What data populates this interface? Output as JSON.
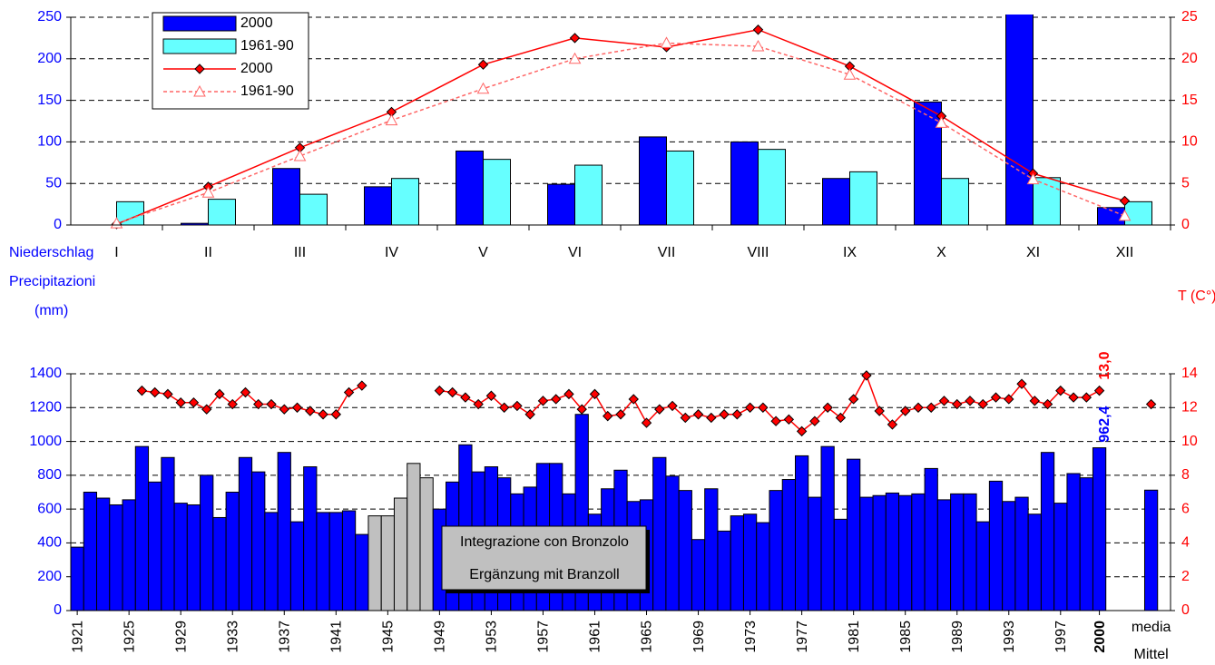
{
  "chart_data": [
    {
      "type": "combo",
      "categories": [
        "I",
        "II",
        "III",
        "IV",
        "V",
        "VI",
        "VII",
        "VIII",
        "IX",
        "X",
        "XI",
        "XII"
      ],
      "y_label": [
        "Niederschlag",
        "Precipitazioni",
        "(mm)"
      ],
      "y2_label": "T (C°)",
      "ylim": [
        0,
        250
      ],
      "yticks": [
        0,
        50,
        100,
        150,
        200,
        250
      ],
      "y2lim": [
        0,
        25
      ],
      "y2ticks": [
        0,
        5,
        10,
        15,
        20,
        25
      ],
      "grid": true,
      "legend": "top-left",
      "series": [
        {
          "name": "2000",
          "type": "bar",
          "color": "#0000ff",
          "values": [
            0,
            2,
            68,
            46,
            89,
            49,
            106,
            100,
            56,
            148,
            260,
            21
          ]
        },
        {
          "name": "1961-90",
          "type": "bar",
          "color": "#66ffff",
          "values": [
            28,
            31,
            37,
            56,
            79,
            72,
            89,
            91,
            64,
            56,
            57,
            28
          ]
        },
        {
          "name": "2000",
          "type": "line",
          "axis": "y2",
          "color": "#ff0000",
          "marker": "diamond",
          "dashed": false,
          "values": [
            0.1,
            4.6,
            9.3,
            13.6,
            19.3,
            22.5,
            21.4,
            23.5,
            19.1,
            13.1,
            6.2,
            2.9
          ]
        },
        {
          "name": "1961-90",
          "type": "line",
          "axis": "y2",
          "color": "#ff6666",
          "marker": "triangle",
          "dashed": true,
          "values": [
            0.2,
            3.9,
            8.3,
            12.6,
            16.4,
            20.0,
            21.9,
            21.5,
            18.1,
            12.3,
            5.5,
            1.1
          ]
        }
      ]
    },
    {
      "type": "combo",
      "x": [
        1921,
        1922,
        1923,
        1924,
        1925,
        1926,
        1927,
        1928,
        1929,
        1930,
        1931,
        1932,
        1933,
        1934,
        1935,
        1936,
        1937,
        1938,
        1939,
        1940,
        1941,
        1942,
        1943,
        1944,
        1945,
        1946,
        1947,
        1948,
        1949,
        1950,
        1951,
        1952,
        1953,
        1954,
        1955,
        1956,
        1957,
        1958,
        1959,
        1960,
        1961,
        1962,
        1963,
        1964,
        1965,
        1966,
        1967,
        1968,
        1969,
        1970,
        1971,
        1972,
        1973,
        1974,
        1975,
        1976,
        1977,
        1978,
        1979,
        1980,
        1981,
        1982,
        1983,
        1984,
        1985,
        1986,
        1987,
        1988,
        1989,
        1990,
        1991,
        1992,
        1993,
        1994,
        1995,
        1996,
        1997,
        1998,
        1999,
        2000
      ],
      "xlim": [
        1920.5,
        2005.5
      ],
      "xticks": [
        1921,
        1925,
        1929,
        1933,
        1937,
        1941,
        1945,
        1949,
        1953,
        1957,
        1961,
        1965,
        1969,
        1973,
        1977,
        1981,
        1985,
        1989,
        1993,
        1997,
        2000
      ],
      "ylim": [
        0,
        1400
      ],
      "yticks": [
        0,
        200,
        400,
        600,
        800,
        1000,
        1200,
        1400
      ],
      "y2lim": [
        0,
        14
      ],
      "y2ticks": [
        0,
        2,
        4,
        6,
        8,
        10,
        12,
        14
      ],
      "grid": true,
      "supplement_range": [
        1944,
        1948
      ],
      "supplement_color": "#c0c0c0",
      "annotations": [
        "Integrazione con Bronzolo",
        "Ergänzung mit Branzoll"
      ],
      "mean": {
        "labels": [
          "media",
          "Mittel"
        ],
        "precipitation": 712,
        "temperature": 12.2
      },
      "series": [
        {
          "type": "bar",
          "color": "#0000ff",
          "values": [
            375,
            700,
            665,
            625,
            655,
            970,
            760,
            905,
            635,
            625,
            800,
            550,
            700,
            905,
            820,
            580,
            935,
            525,
            850,
            580,
            580,
            590,
            450,
            560,
            560,
            665,
            870,
            785,
            600,
            760,
            980,
            820,
            850,
            785,
            690,
            730,
            870,
            870,
            690,
            1160,
            570,
            720,
            830,
            645,
            655,
            905,
            795,
            710,
            420,
            720,
            470,
            560,
            570,
            520,
            710,
            775,
            915,
            670,
            970,
            540,
            895,
            670,
            680,
            695,
            680,
            690,
            840,
            655,
            690,
            690,
            525,
            765,
            645,
            670,
            570,
            935,
            635,
            810,
            785,
            962.4
          ],
          "value_labels": [
            null,
            null,
            null,
            null,
            null,
            null,
            null,
            null,
            null,
            null,
            null,
            null,
            null,
            null,
            null,
            null,
            null,
            null,
            null,
            null,
            null,
            null,
            null,
            null,
            null,
            null,
            null,
            null,
            null,
            null,
            null,
            null,
            null,
            null,
            null,
            null,
            null,
            null,
            null,
            null,
            null,
            null,
            null,
            null,
            null,
            null,
            null,
            null,
            null,
            null,
            null,
            null,
            null,
            null,
            null,
            null,
            null,
            null,
            null,
            null,
            null,
            null,
            null,
            null,
            null,
            null,
            null,
            null,
            null,
            null,
            null,
            null,
            null,
            null,
            null,
            null,
            null,
            null,
            null,
            "962,4"
          ]
        },
        {
          "type": "line",
          "axis": "y2",
          "color": "#ff0000",
          "marker": "diamond",
          "values": [
            null,
            null,
            null,
            null,
            null,
            13.0,
            12.9,
            12.8,
            12.3,
            12.3,
            11.9,
            12.8,
            12.2,
            12.9,
            12.2,
            12.2,
            11.9,
            12.0,
            11.8,
            11.6,
            11.6,
            12.9,
            13.3,
            null,
            null,
            null,
            null,
            null,
            13.0,
            12.9,
            12.6,
            12.2,
            12.7,
            12.0,
            12.1,
            11.6,
            12.4,
            12.5,
            12.8,
            11.9,
            12.8,
            11.5,
            11.6,
            12.5,
            11.1,
            11.9,
            12.1,
            11.4,
            11.6,
            11.4,
            11.6,
            11.6,
            12.0,
            12.0,
            11.2,
            11.3,
            10.6,
            11.2,
            12.0,
            11.4,
            12.5,
            13.9,
            11.8,
            11.0,
            11.8,
            12.0,
            12.0,
            12.4,
            12.2,
            12.4,
            12.2,
            12.6,
            12.5,
            13.4,
            12.4,
            12.2,
            13.0,
            12.6,
            12.6,
            13.0
          ],
          "value_labels": [
            null,
            null,
            null,
            null,
            null,
            null,
            null,
            null,
            null,
            null,
            null,
            null,
            null,
            null,
            null,
            null,
            null,
            null,
            null,
            null,
            null,
            null,
            null,
            null,
            null,
            null,
            null,
            null,
            null,
            null,
            null,
            null,
            null,
            null,
            null,
            null,
            null,
            null,
            null,
            null,
            null,
            null,
            null,
            null,
            null,
            null,
            null,
            null,
            null,
            null,
            null,
            null,
            null,
            null,
            null,
            null,
            null,
            null,
            null,
            null,
            null,
            null,
            null,
            null,
            null,
            null,
            null,
            null,
            null,
            null,
            null,
            null,
            null,
            null,
            null,
            null,
            null,
            null,
            null,
            "13,0"
          ]
        }
      ]
    }
  ]
}
